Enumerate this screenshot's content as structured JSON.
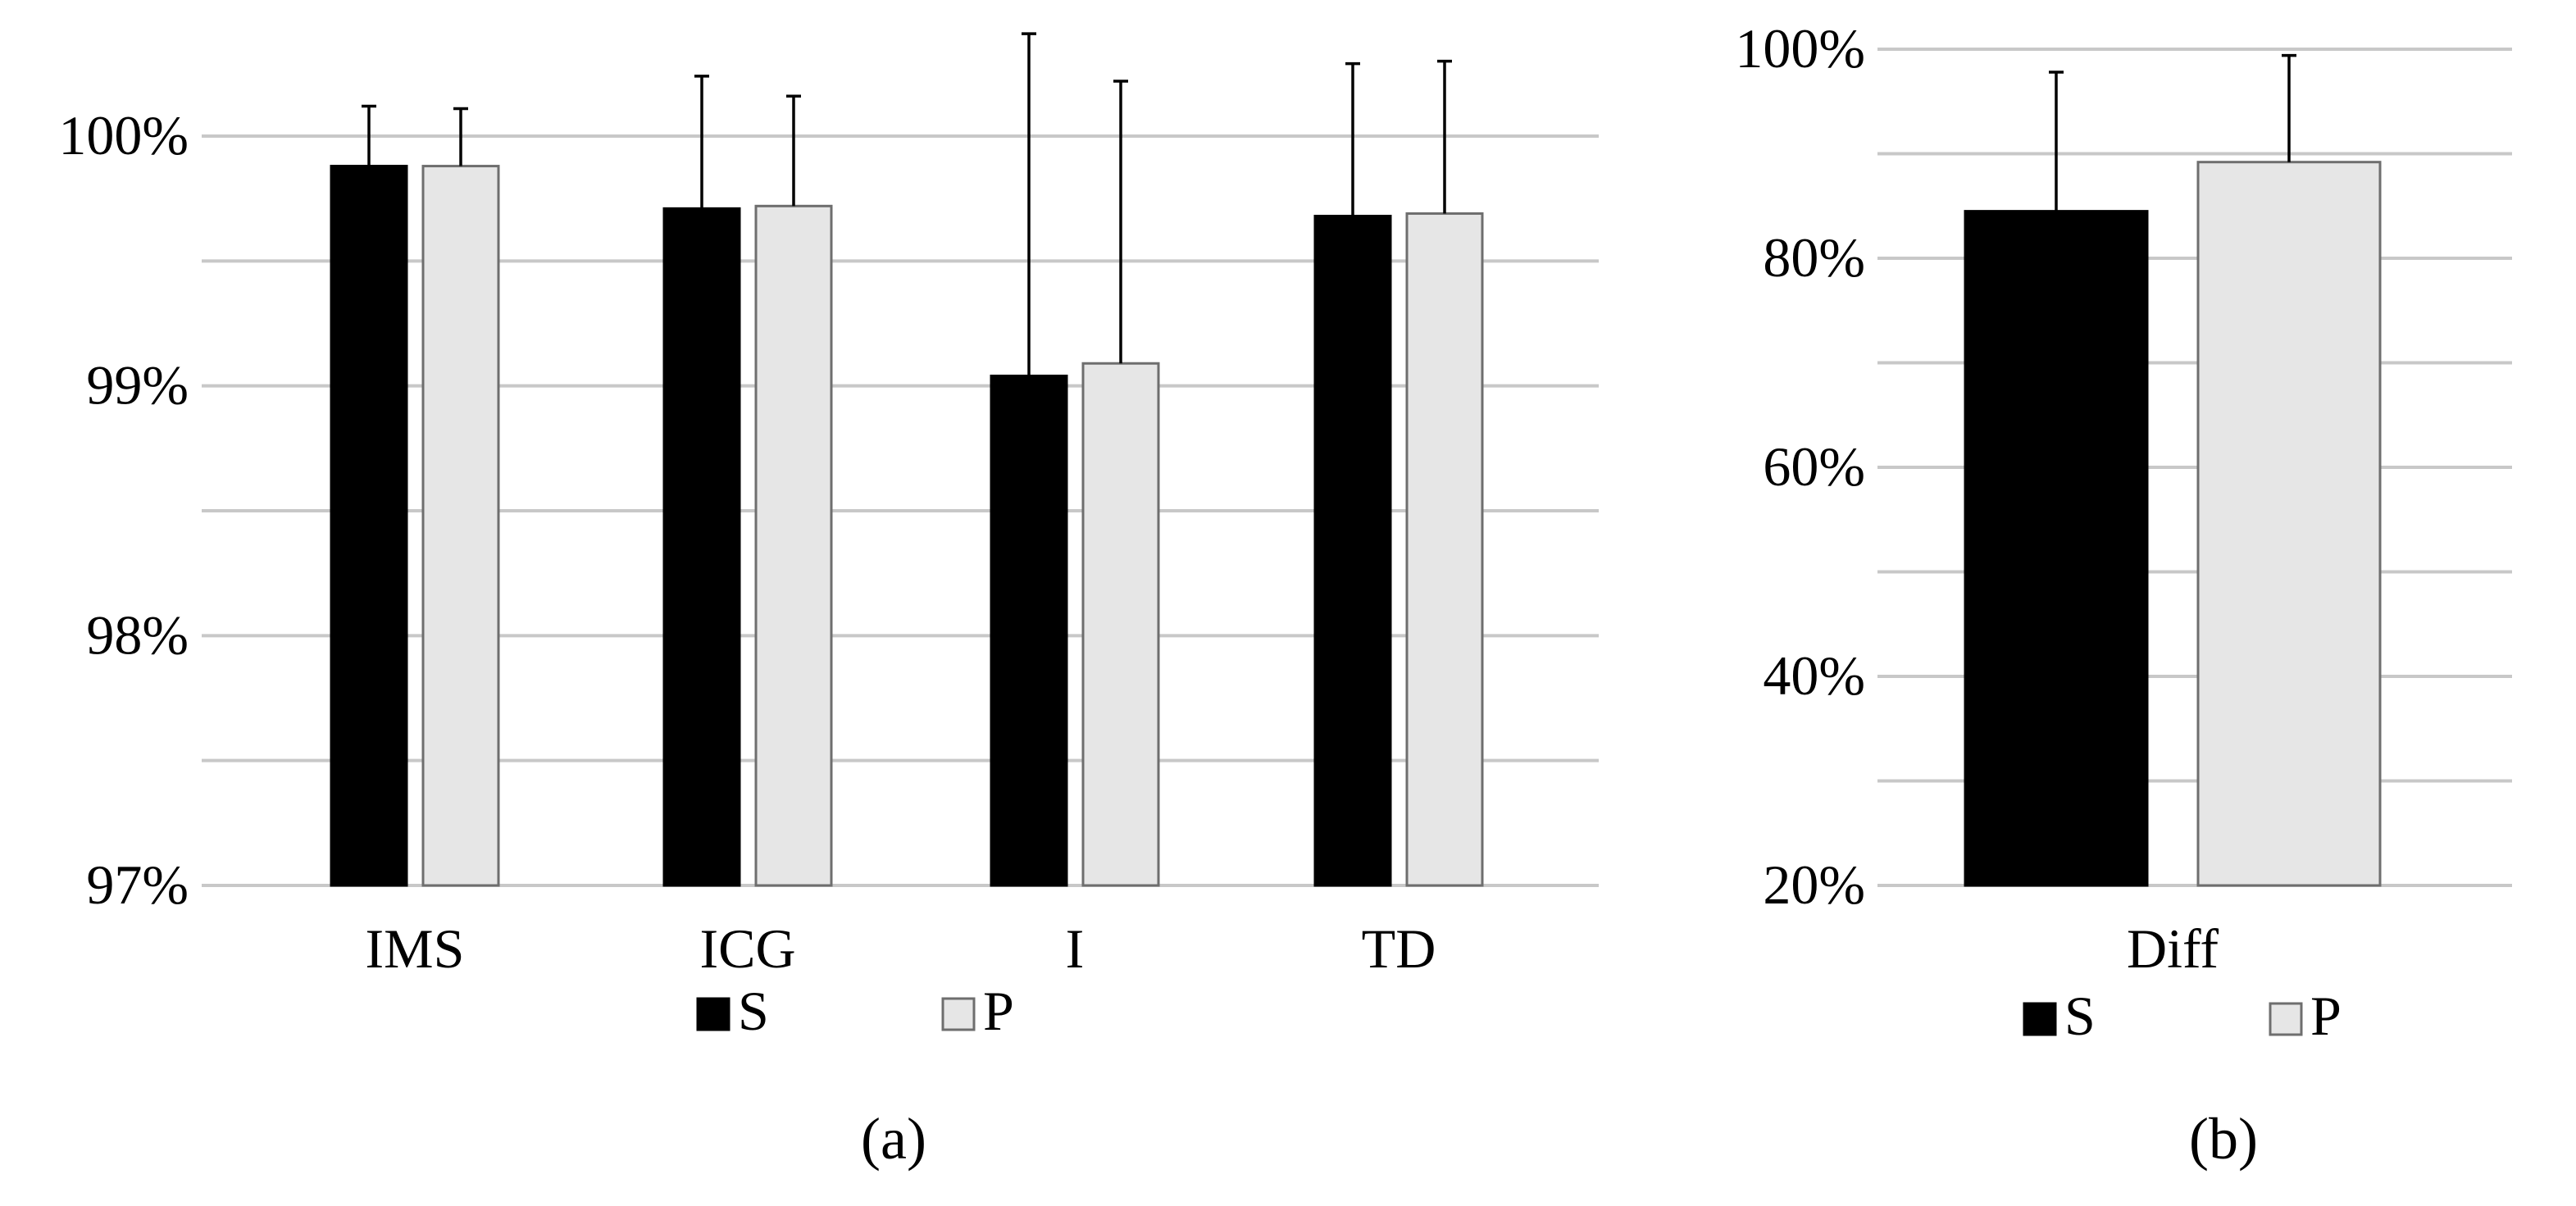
{
  "chart_data": [
    {
      "type": "bar",
      "panel_label": "(a)",
      "categories": [
        "IMS",
        "ICG",
        "I",
        "TD"
      ],
      "series": [
        {
          "name": "S",
          "color": "#000000",
          "values": [
            99.88,
            99.71,
            99.04,
            99.68
          ],
          "error_upper": [
            0.24,
            0.53,
            1.37,
            0.61
          ]
        },
        {
          "name": "P",
          "color": "#e6e6e6",
          "values": [
            99.88,
            99.72,
            99.09,
            99.69
          ],
          "error_upper": [
            0.23,
            0.44,
            1.13,
            0.61
          ]
        }
      ],
      "ylim": [
        97,
        100.3
      ],
      "yticks": [
        97,
        98,
        99,
        100
      ],
      "ytick_labels": [
        "97%",
        "98%",
        "99%",
        "100%"
      ],
      "minor_gridlines": [
        97.5,
        98.5,
        99.5
      ],
      "legend": {
        "placement": "bottom-center",
        "items": [
          "S",
          "P"
        ]
      },
      "grid": true,
      "title": "",
      "xlabel": "",
      "ylabel": ""
    },
    {
      "type": "bar",
      "panel_label": "(b)",
      "categories": [
        "Diff"
      ],
      "series": [
        {
          "name": "S",
          "color": "#000000",
          "values": [
            84.5
          ],
          "error_upper": [
            13.3
          ]
        },
        {
          "name": "P",
          "color": "#e6e6e6",
          "values": [
            89.2
          ],
          "error_upper": [
            10.2
          ]
        }
      ],
      "ylim": [
        20,
        102
      ],
      "yticks": [
        20,
        40,
        60,
        80,
        100
      ],
      "ytick_labels": [
        "20%",
        "40%",
        "60%",
        "80%",
        "100%"
      ],
      "minor_gridlines": [
        30,
        50,
        70,
        90
      ],
      "legend": {
        "placement": "bottom-center",
        "items": [
          "S",
          "P"
        ]
      },
      "grid": true,
      "title": "",
      "xlabel": "",
      "ylabel": ""
    }
  ]
}
